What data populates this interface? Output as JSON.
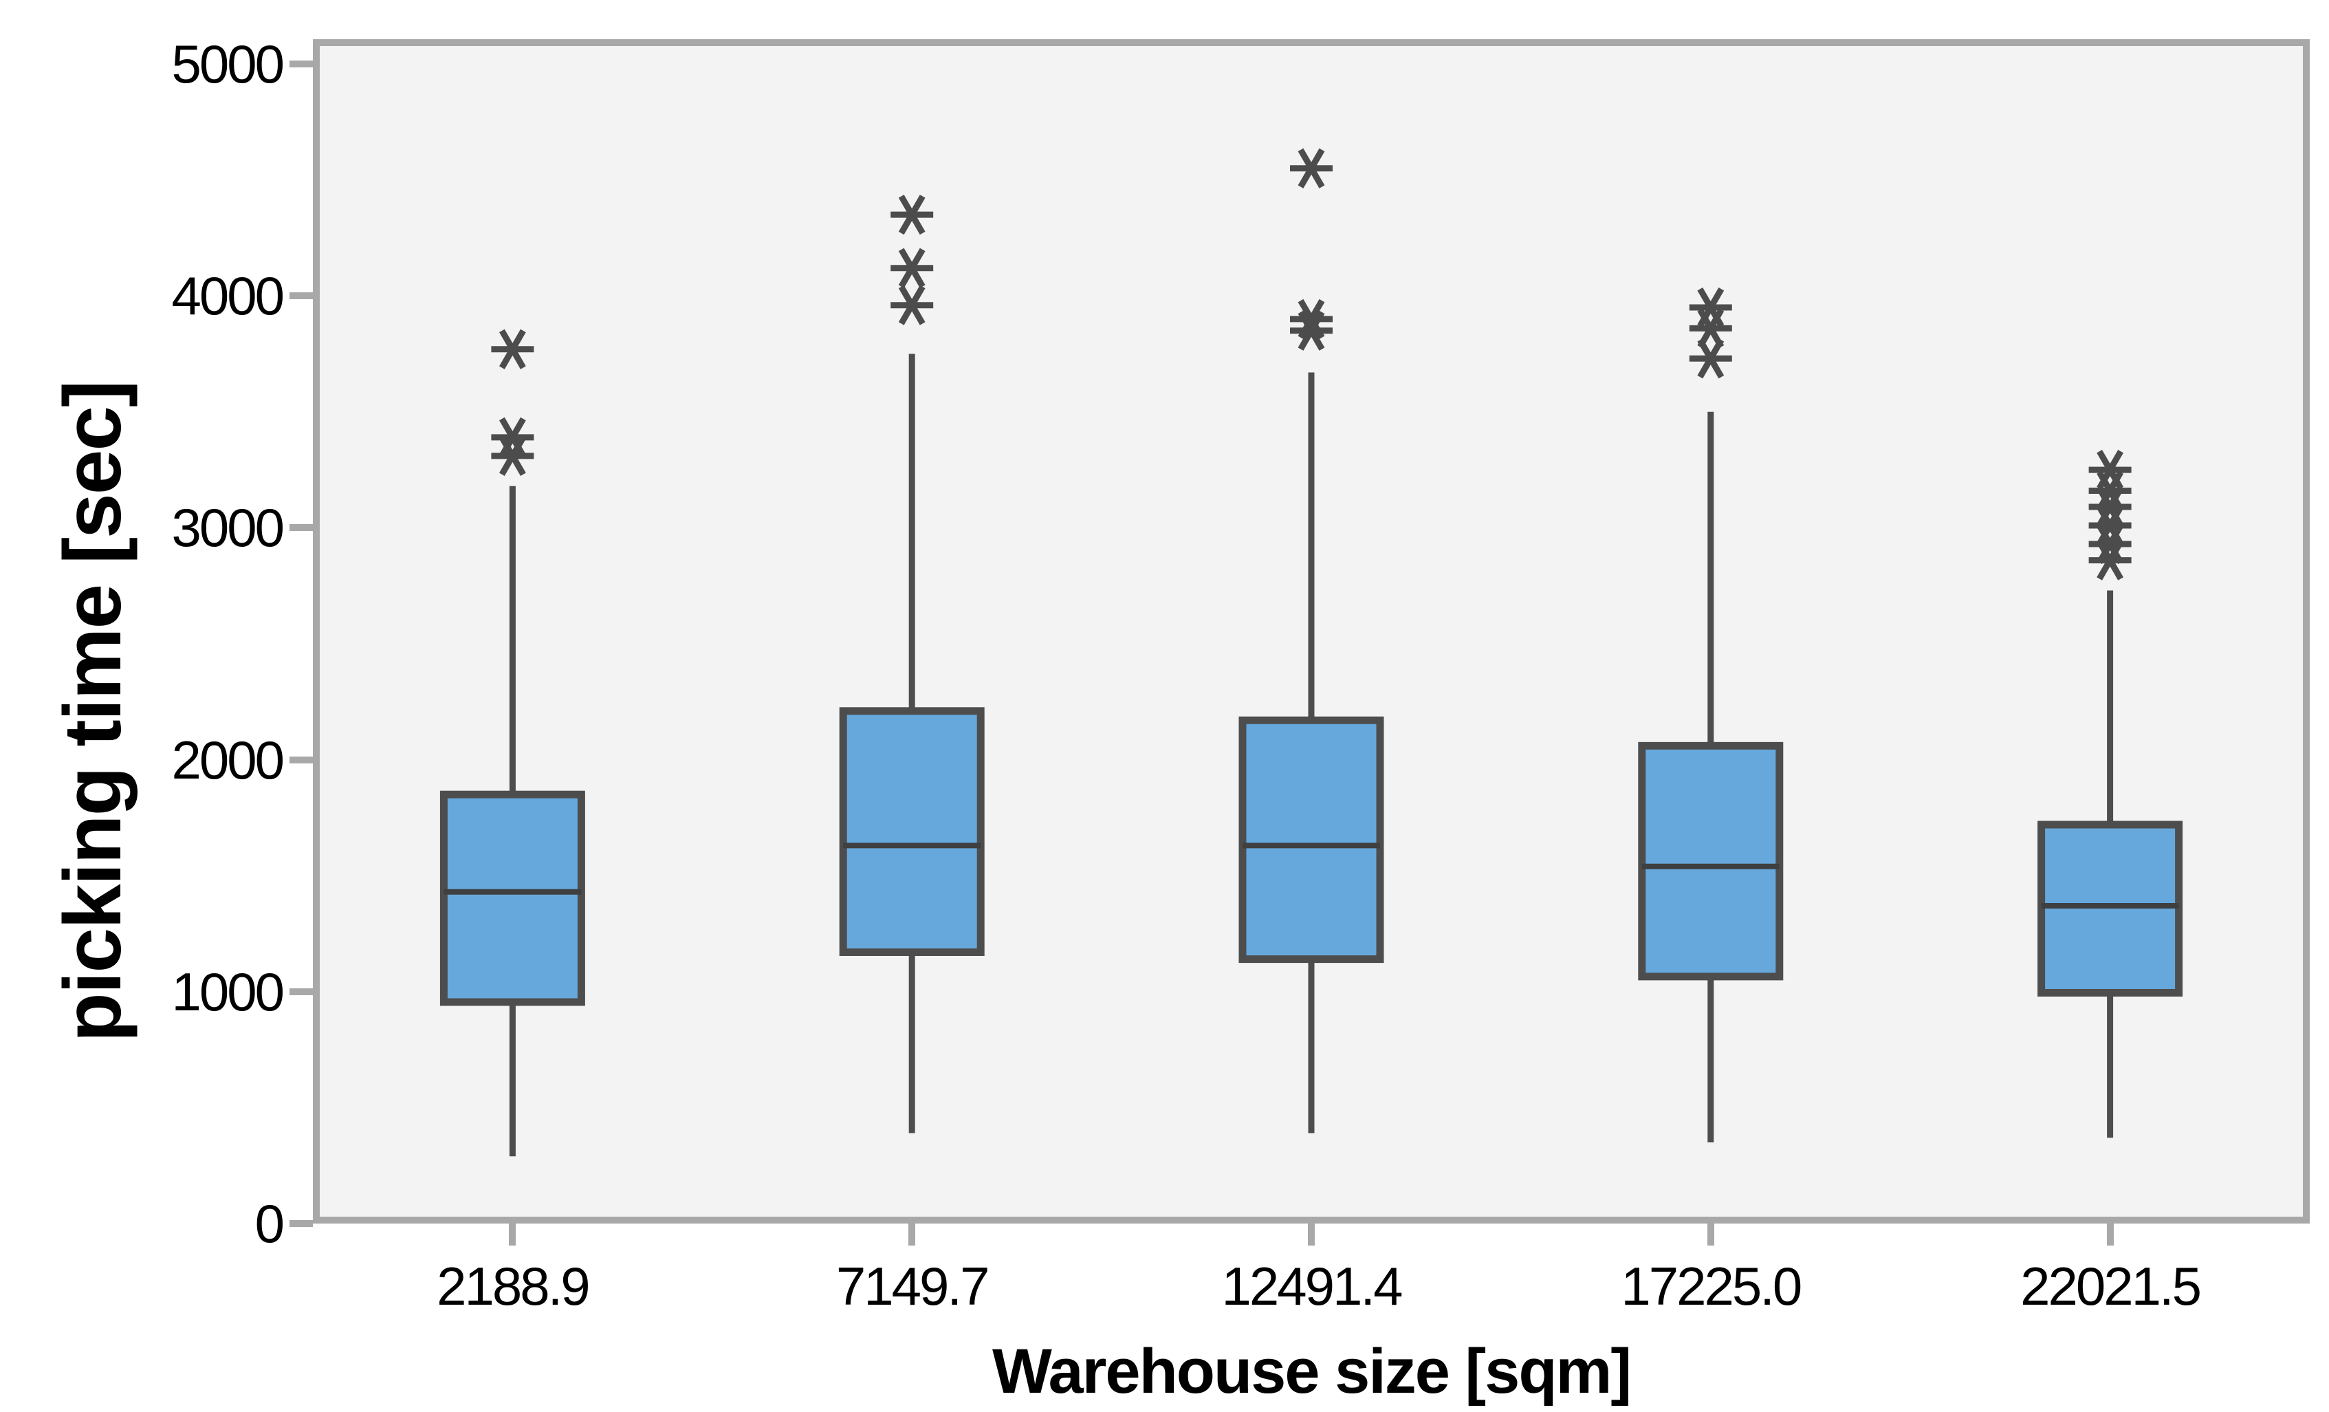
{
  "chart_data": {
    "type": "box",
    "title": "",
    "xlabel": "Warehouse size [sqm]",
    "ylabel": "picking time [sec]",
    "ylim": [
      0,
      5000
    ],
    "yticks": [
      0,
      1000,
      2000,
      3000,
      4000,
      5000
    ],
    "grid": "off",
    "legend": "none",
    "outlier_marker": "asterisk",
    "categories": [
      "2188.9",
      "7149.7",
      "12491.4",
      "17225.0",
      "22021.5"
    ],
    "series": [
      {
        "category": "2188.9",
        "whisker_low": 290,
        "q1": 955,
        "median": 1430,
        "q3": 1850,
        "whisker_high": 3180,
        "outliers": [
          3310,
          3390,
          3770
        ]
      },
      {
        "category": "7149.7",
        "whisker_low": 390,
        "q1": 1170,
        "median": 1630,
        "q3": 2210,
        "whisker_high": 3750,
        "outliers": [
          3960,
          4120,
          4350
        ]
      },
      {
        "category": "12491.4",
        "whisker_low": 390,
        "q1": 1140,
        "median": 1630,
        "q3": 2170,
        "whisker_high": 3670,
        "outliers": [
          3850,
          3900,
          4550
        ]
      },
      {
        "category": "17225.0",
        "whisker_low": 350,
        "q1": 1065,
        "median": 1540,
        "q3": 2060,
        "whisker_high": 3500,
        "outliers": [
          3730,
          3860,
          3950
        ]
      },
      {
        "category": "22021.5",
        "whisker_low": 370,
        "q1": 995,
        "median": 1370,
        "q3": 1720,
        "whisker_high": 2730,
        "outliers": [
          2860,
          2930,
          3010,
          3090,
          3160,
          3250
        ]
      }
    ],
    "colors": {
      "box_fill": "#67a8dc",
      "box_stroke": "#4d4d4d",
      "whisker": "#4d4d4d",
      "median": "#3f3f3f",
      "outlier": "#4c4c4c",
      "plot_background": "#f3f3f3",
      "frame": "#a8a8a8",
      "text": "#000000"
    }
  }
}
